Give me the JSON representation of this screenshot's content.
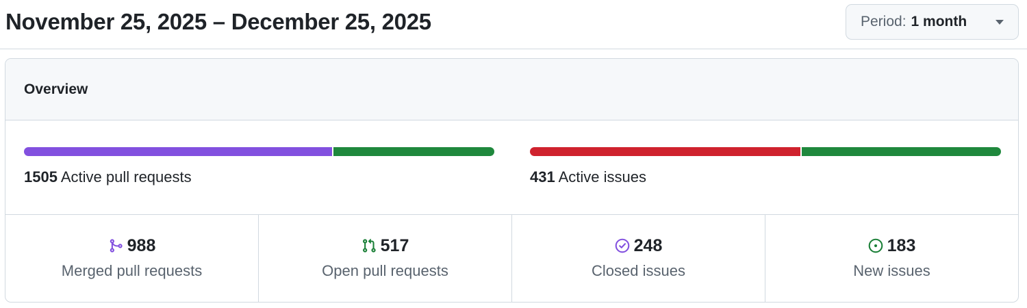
{
  "header": {
    "date_range": "November 25, 2025 – December 25, 2025",
    "period_label": "Period:",
    "period_value": "1 month",
    "period_icon": "triangle-down-icon"
  },
  "overview": {
    "title": "Overview",
    "pull_requests": {
      "count": "1505",
      "label": "Active pull requests",
      "bar": {
        "merged": 988,
        "open": 517
      }
    },
    "issues": {
      "count": "431",
      "label": "Active issues",
      "bar": {
        "closed": 248,
        "new": 183
      }
    },
    "stats": [
      {
        "icon": "git-merge-icon",
        "value": "988",
        "label": "Merged pull requests",
        "color": "#8250df"
      },
      {
        "icon": "git-pull-request-icon",
        "value": "517",
        "label": "Open pull requests",
        "color": "#1a7f37"
      },
      {
        "icon": "issue-closed-icon",
        "value": "248",
        "label": "Closed issues",
        "color": "#8250df"
      },
      {
        "icon": "issue-opened-icon",
        "value": "183",
        "label": "New issues",
        "color": "#1a7f37"
      }
    ]
  },
  "colors": {
    "merged": "#8250df",
    "open": "#1f883d",
    "closed": "#cf222e",
    "new": "#1f883d"
  }
}
